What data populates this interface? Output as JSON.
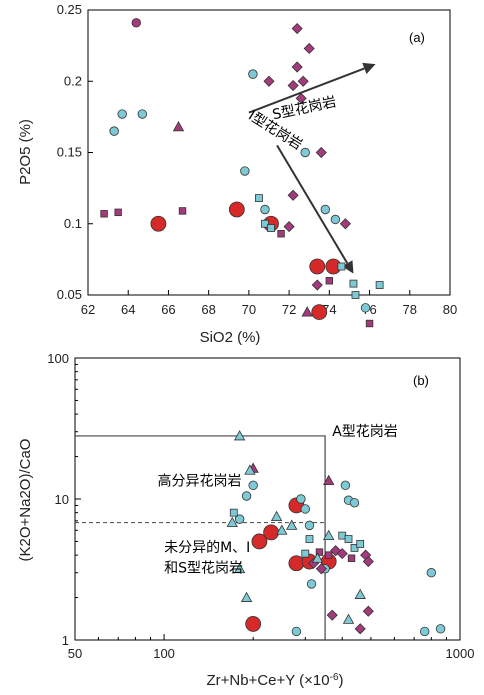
{
  "colors": {
    "large_circle": "#d62a2a",
    "small_circle": "#7ec9d6",
    "square_cyan": "#7ec9d6",
    "square_magenta": "#a33a7c",
    "diamond": "#a33a7c",
    "triangle_magenta": "#a33a7c",
    "triangle_cyan": "#7ec9d6",
    "arrow": "#333333"
  },
  "chart_data": [
    {
      "type": "scatter",
      "panel_label": "(a)",
      "xlabel": "SiO2 (%)",
      "ylabel": "P2O5 (%)",
      "xlim": [
        62,
        80
      ],
      "ylim": [
        0.05,
        0.25
      ],
      "xscale": "linear",
      "yscale": "linear",
      "xticks": [
        62,
        64,
        66,
        68,
        70,
        72,
        74,
        76,
        78,
        80
      ],
      "yticks": [
        0.25,
        0.2,
        0.15,
        0.1,
        0.05
      ],
      "ytick_labels": [
        "0.25",
        "0.2",
        "0.15",
        "0.1",
        "0.05"
      ],
      "annotations": [
        {
          "text": "S型花岗岩",
          "x": 72.8,
          "y": 0.178,
          "rotate": -12
        },
        {
          "text": "I型花岗岩",
          "x": 71.2,
          "y": 0.163,
          "rotate": 32
        }
      ],
      "arrows": [
        {
          "from": [
            70.0,
            0.178
          ],
          "to": [
            76.3,
            0.212
          ]
        },
        {
          "from": [
            71.4,
            0.155
          ],
          "to": [
            75.2,
            0.065
          ]
        }
      ],
      "series": [
        {
          "marker": "large_circle",
          "points": [
            [
              65.5,
              0.1
            ],
            [
              69.4,
              0.11
            ],
            [
              71.1,
              0.1
            ],
            [
              73.4,
              0.07
            ],
            [
              74.2,
              0.07
            ],
            [
              73.5,
              0.038
            ]
          ]
        },
        {
          "marker": "small_circle",
          "points": [
            [
              63.3,
              0.165
            ],
            [
              63.7,
              0.177
            ],
            [
              64.7,
              0.177
            ],
            [
              69.8,
              0.137
            ],
            [
              70.2,
              0.205
            ],
            [
              70.8,
              0.11
            ],
            [
              72.8,
              0.15
            ],
            [
              73.8,
              0.11
            ],
            [
              74.3,
              0.103
            ],
            [
              75.8,
              0.041
            ]
          ]
        },
        {
          "marker": "square_cyan",
          "points": [
            [
              70.5,
              0.118
            ],
            [
              70.8,
              0.1
            ],
            [
              71.1,
              0.097
            ],
            [
              74.6,
              0.07
            ],
            [
              75.2,
              0.058
            ],
            [
              75.3,
              0.05
            ],
            [
              76.5,
              0.057
            ]
          ]
        },
        {
          "marker": "square_magenta",
          "points": [
            [
              62.8,
              0.107
            ],
            [
              63.5,
              0.108
            ],
            [
              66.7,
              0.109
            ],
            [
              71.6,
              0.093
            ],
            [
              76.0,
              0.03
            ],
            [
              74.0,
              0.06
            ]
          ]
        },
        {
          "marker": "diamond",
          "points": [
            [
              72.4,
              0.237
            ],
            [
              73.0,
              0.223
            ],
            [
              72.4,
              0.21
            ],
            [
              72.2,
              0.197
            ],
            [
              72.7,
              0.2
            ],
            [
              72.6,
              0.188
            ],
            [
              71.0,
              0.2
            ],
            [
              73.6,
              0.15
            ],
            [
              72.2,
              0.12
            ],
            [
              72.0,
              0.098
            ],
            [
              74.8,
              0.1
            ],
            [
              73.4,
              0.057
            ]
          ]
        },
        {
          "marker": "triangle_magenta",
          "points": [
            [
              66.5,
              0.168
            ],
            [
              72.9,
              0.038
            ]
          ]
        },
        {
          "marker": "small_circle_magenta",
          "points": [
            [
              64.4,
              0.241
            ]
          ]
        }
      ]
    },
    {
      "type": "scatter",
      "panel_label": "(b)",
      "xlabel": "Zr+Nb+Ce+Y (×10",
      "xlabel_sup": "-6",
      "xlabel_end": ")",
      "ylabel": "(K2O+Na2O)/CaO",
      "xlim": [
        50,
        1000
      ],
      "ylim": [
        1,
        100
      ],
      "xscale": "log",
      "yscale": "log",
      "xticks": [
        50,
        100,
        1000
      ],
      "yticks": [
        1,
        10,
        100
      ],
      "region_labels": [
        {
          "text": "A型花岗岩",
          "x": 370,
          "y": 28
        },
        {
          "text": "高分异花岗岩",
          "x": 95,
          "y": 12.5
        },
        {
          "text": "未分异的M、I",
          "x": 100,
          "y": 4.2
        },
        {
          "text": "和S型花岗岩",
          "x": 100,
          "y": 3.0
        }
      ],
      "boundaries": {
        "solid": [
          [
            50,
            28
          ],
          [
            350,
            28
          ],
          [
            350,
            1
          ]
        ],
        "dashed": [
          [
            50,
            6.8
          ],
          [
            350,
            6.8
          ]
        ]
      },
      "series": [
        {
          "marker": "large_circle",
          "points": [
            [
              280,
              9
            ],
            [
              210,
              5
            ],
            [
              230,
              5.8
            ],
            [
              280,
              3.5
            ],
            [
              310,
              3.6
            ],
            [
              360,
              3.6
            ],
            [
              200,
              1.3
            ]
          ]
        },
        {
          "marker": "small_circle",
          "points": [
            [
              180,
              7.2
            ],
            [
              190,
              10.5
            ],
            [
              200,
              12.5
            ],
            [
              290,
              10
            ],
            [
              300,
              8.5
            ],
            [
              310,
              6.5
            ],
            [
              350,
              3.2
            ],
            [
              410,
              12.5
            ],
            [
              420,
              9.8
            ],
            [
              440,
              9.4
            ],
            [
              280,
              1.15
            ],
            [
              760,
              1.15
            ],
            [
              800,
              3.0
            ],
            [
              860,
              1.2
            ],
            [
              315,
              2.5
            ]
          ]
        },
        {
          "marker": "square_cyan",
          "points": [
            [
              172,
              8
            ],
            [
              400,
              5.5
            ],
            [
              420,
              5.2
            ],
            [
              440,
              4.5
            ],
            [
              460,
              4.8
            ],
            [
              300,
              4.1
            ],
            [
              310,
              5.2
            ]
          ]
        },
        {
          "marker": "square_magenta",
          "points": [
            [
              335,
              4.2
            ],
            [
              360,
              4.0
            ],
            [
              430,
              3.8
            ]
          ]
        },
        {
          "marker": "diamond",
          "points": [
            [
              320,
              3.5
            ],
            [
              340,
              3.2
            ],
            [
              380,
              4.3
            ],
            [
              400,
              4.1
            ],
            [
              480,
              4.0
            ],
            [
              490,
              3.6
            ],
            [
              370,
              1.5
            ],
            [
              460,
              1.2
            ],
            [
              490,
              1.6
            ]
          ]
        },
        {
          "marker": "triangle_magenta",
          "points": [
            [
              200,
              16.5
            ],
            [
              360,
              13.5
            ]
          ]
        },
        {
          "marker": "triangle_cyan",
          "points": [
            [
              180,
              28
            ],
            [
              195,
              16
            ],
            [
              170,
              6.8
            ],
            [
              240,
              7.5
            ],
            [
              250,
              6
            ],
            [
              180,
              3.2
            ],
            [
              190,
              2
            ],
            [
              360,
              5.5
            ],
            [
              420,
              1.4
            ],
            [
              460,
              2.1
            ],
            [
              330,
              3.8
            ],
            [
              270,
              6.5
            ]
          ]
        }
      ]
    }
  ]
}
